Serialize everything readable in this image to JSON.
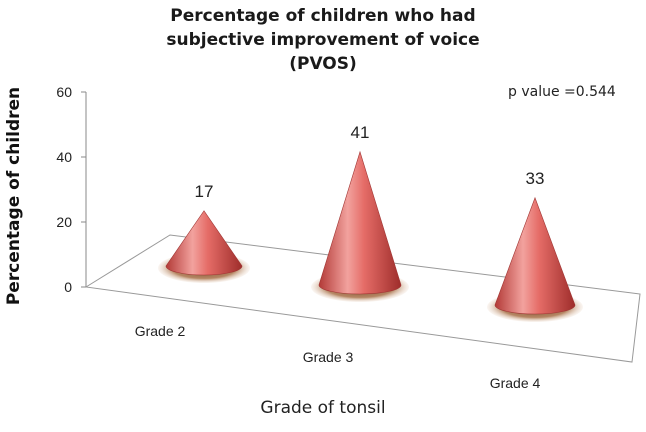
{
  "chart_data": {
    "type": "bar",
    "style": "3d-cone",
    "title": "Percentage of children who had subjective improvement of voice (PVOS)",
    "xlabel": "Grade of tonsil",
    "ylabel": "Percentage of children",
    "categories": [
      "Grade 2",
      "Grade 3",
      "Grade 4"
    ],
    "values": [
      17,
      41,
      33
    ],
    "data_labels": [
      "17",
      "41",
      "33"
    ],
    "ylim": [
      0,
      60
    ],
    "yticks": [
      0,
      20,
      40,
      60
    ],
    "annotation": "p value =0.544",
    "grid": false,
    "legend": "none",
    "colors": {
      "cone_light": "#f4a8a4",
      "cone_mid": "#e0605c",
      "cone_dark": "#a8302e",
      "shadow": "#9c6a3e"
    }
  }
}
